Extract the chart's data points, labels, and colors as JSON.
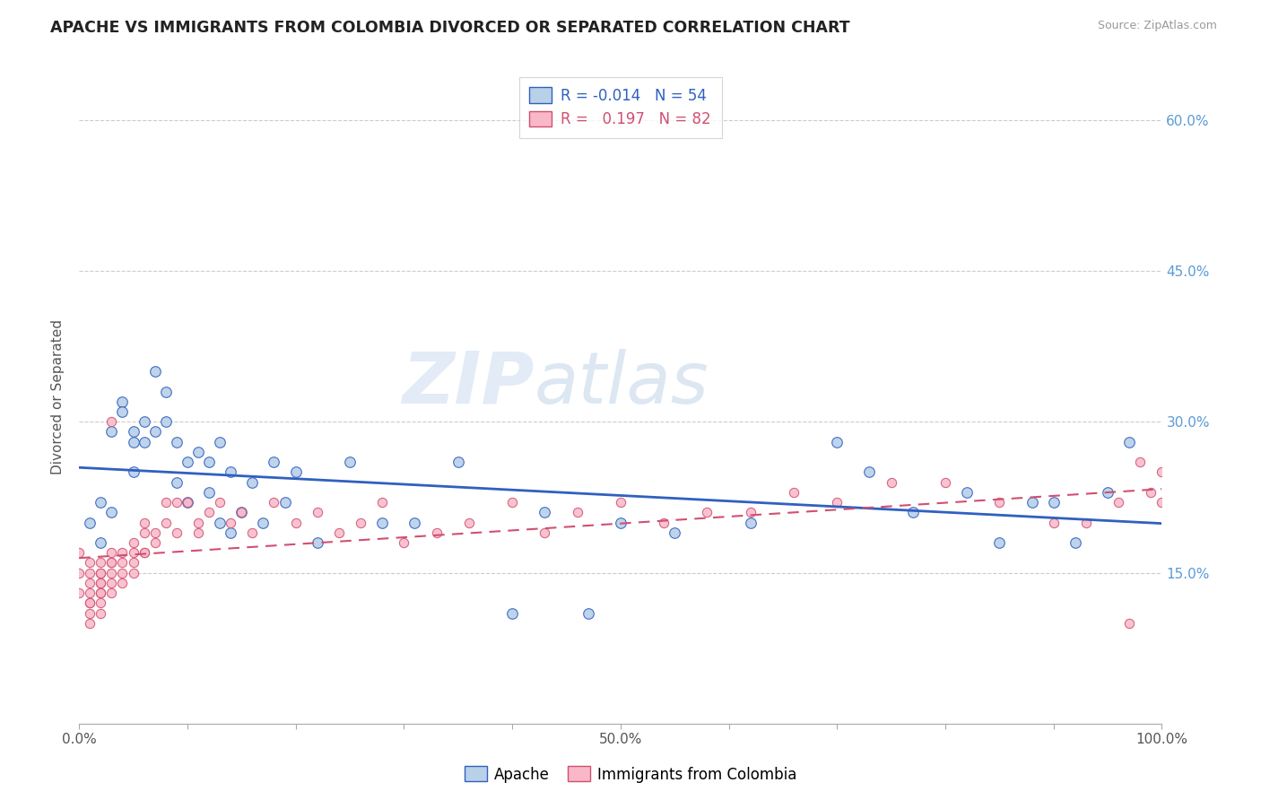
{
  "title": "APACHE VS IMMIGRANTS FROM COLOMBIA DIVORCED OR SEPARATED CORRELATION CHART",
  "source_text": "Source: ZipAtlas.com",
  "ylabel": "Divorced or Separated",
  "legend_label1": "Apache",
  "legend_label2": "Immigrants from Colombia",
  "r1": "-0.014",
  "n1": "54",
  "r2": "0.197",
  "n2": "82",
  "color1": "#b8d0e8",
  "color2": "#f8b8c8",
  "line_color1": "#3060c0",
  "line_color2": "#d05070",
  "watermark_zip": "ZIP",
  "watermark_atlas": "atlas",
  "xlim": [
    0.0,
    1.0
  ],
  "ylim": [
    0.0,
    0.65
  ],
  "xtick_positions": [
    0.0,
    0.1,
    0.2,
    0.3,
    0.4,
    0.5,
    0.6,
    0.7,
    0.8,
    0.9,
    1.0
  ],
  "xtick_labels": [
    "0.0%",
    "",
    "",
    "",
    "",
    "50.0%",
    "",
    "",
    "",
    "",
    "100.0%"
  ],
  "ytick_positions": [
    0.0,
    0.15,
    0.3,
    0.45,
    0.6
  ],
  "ytick_labels_right": [
    "",
    "15.0%",
    "30.0%",
    "45.0%",
    "60.0%"
  ],
  "apache_x": [
    0.01,
    0.02,
    0.02,
    0.03,
    0.03,
    0.04,
    0.04,
    0.05,
    0.05,
    0.05,
    0.06,
    0.06,
    0.07,
    0.07,
    0.08,
    0.08,
    0.09,
    0.09,
    0.1,
    0.1,
    0.11,
    0.12,
    0.12,
    0.13,
    0.13,
    0.14,
    0.14,
    0.15,
    0.16,
    0.17,
    0.18,
    0.19,
    0.2,
    0.22,
    0.25,
    0.28,
    0.31,
    0.35,
    0.4,
    0.43,
    0.47,
    0.5,
    0.55,
    0.62,
    0.7,
    0.73,
    0.77,
    0.82,
    0.85,
    0.88,
    0.9,
    0.92,
    0.95,
    0.97
  ],
  "apache_y": [
    0.2,
    0.22,
    0.18,
    0.29,
    0.21,
    0.32,
    0.31,
    0.29,
    0.28,
    0.25,
    0.3,
    0.28,
    0.35,
    0.29,
    0.33,
    0.3,
    0.28,
    0.24,
    0.26,
    0.22,
    0.27,
    0.26,
    0.23,
    0.28,
    0.2,
    0.25,
    0.19,
    0.21,
    0.24,
    0.2,
    0.26,
    0.22,
    0.25,
    0.18,
    0.26,
    0.2,
    0.2,
    0.26,
    0.11,
    0.21,
    0.11,
    0.2,
    0.19,
    0.2,
    0.28,
    0.25,
    0.21,
    0.23,
    0.18,
    0.22,
    0.22,
    0.18,
    0.23,
    0.28
  ],
  "colombia_x": [
    0.0,
    0.0,
    0.0,
    0.01,
    0.01,
    0.01,
    0.01,
    0.01,
    0.01,
    0.01,
    0.01,
    0.02,
    0.02,
    0.02,
    0.02,
    0.02,
    0.02,
    0.02,
    0.02,
    0.02,
    0.03,
    0.03,
    0.03,
    0.03,
    0.03,
    0.03,
    0.04,
    0.04,
    0.04,
    0.04,
    0.05,
    0.05,
    0.05,
    0.05,
    0.06,
    0.06,
    0.06,
    0.06,
    0.07,
    0.07,
    0.08,
    0.08,
    0.09,
    0.09,
    0.1,
    0.11,
    0.11,
    0.12,
    0.13,
    0.14,
    0.15,
    0.16,
    0.18,
    0.2,
    0.22,
    0.24,
    0.26,
    0.28,
    0.3,
    0.33,
    0.36,
    0.4,
    0.43,
    0.46,
    0.5,
    0.54,
    0.58,
    0.62,
    0.66,
    0.7,
    0.75,
    0.8,
    0.85,
    0.9,
    0.93,
    0.96,
    0.98,
    0.99,
    1.0,
    1.0,
    0.97,
    0.03
  ],
  "colombia_y": [
    0.15,
    0.13,
    0.17,
    0.12,
    0.14,
    0.1,
    0.13,
    0.15,
    0.12,
    0.11,
    0.16,
    0.13,
    0.14,
    0.15,
    0.12,
    0.16,
    0.14,
    0.13,
    0.15,
    0.11,
    0.16,
    0.14,
    0.15,
    0.17,
    0.13,
    0.16,
    0.15,
    0.17,
    0.14,
    0.16,
    0.17,
    0.15,
    0.18,
    0.16,
    0.17,
    0.19,
    0.2,
    0.17,
    0.19,
    0.18,
    0.2,
    0.22,
    0.19,
    0.22,
    0.22,
    0.2,
    0.19,
    0.21,
    0.22,
    0.2,
    0.21,
    0.19,
    0.22,
    0.2,
    0.21,
    0.19,
    0.2,
    0.22,
    0.18,
    0.19,
    0.2,
    0.22,
    0.19,
    0.21,
    0.22,
    0.2,
    0.21,
    0.21,
    0.23,
    0.22,
    0.24,
    0.24,
    0.22,
    0.2,
    0.2,
    0.22,
    0.26,
    0.23,
    0.22,
    0.25,
    0.1,
    0.3
  ]
}
